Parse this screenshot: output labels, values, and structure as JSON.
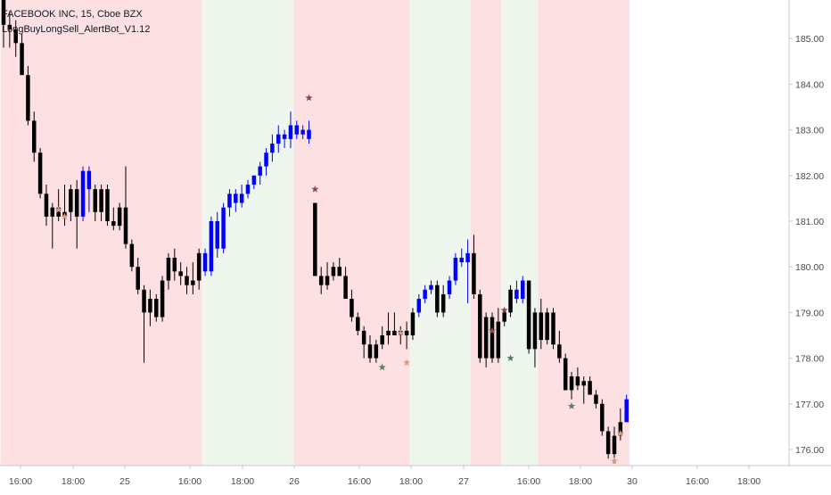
{
  "header": {
    "symbol_line": "FACEBOOK INC, 15, Cboe BZX",
    "indicator_line": "LongBuyLongSell_AlertBot_V1.12"
  },
  "colors": {
    "background": "#ffffff",
    "sell_zone": "#fde0e2",
    "buy_zone": "#eef6ee",
    "candle_black": "#000000",
    "candle_blue": "#0000ff",
    "star_buy": "#5f7a6a",
    "star_sell": "#8a4a4a",
    "star_light": "#d99a8a",
    "axis_text": "#4a4a4a",
    "axis_line": "#c9c9c9"
  },
  "chart_data": {
    "type": "candlestick",
    "title": "FACEBOOK INC, 15, Cboe BZX",
    "indicator": "LongBuyLongSell_AlertBot_V1.12",
    "ylim": [
      175.7,
      186.0
    ],
    "y_ticks": [
      176.0,
      177.0,
      178.0,
      179.0,
      180.0,
      181.0,
      182.0,
      183.0,
      184.0,
      185.0
    ],
    "x_tick_labels": [
      "16:00",
      "18:00",
      "25",
      "16:00",
      "18:00",
      "26",
      "16:00",
      "18:00",
      "27",
      "16:00",
      "18:00",
      "30",
      "16:00",
      "18:00"
    ],
    "zones": [
      {
        "type": "sell",
        "from_bar": -0.5,
        "to_bar": 32.5
      },
      {
        "type": "buy",
        "from_bar": 32.5,
        "to_bar": 47.5
      },
      {
        "type": "sell",
        "from_bar": 47.5,
        "to_bar": 66.5
      },
      {
        "type": "buy",
        "from_bar": 66.5,
        "to_bar": 76.5
      },
      {
        "type": "sell",
        "from_bar": 76.5,
        "to_bar": 81.5
      },
      {
        "type": "buy",
        "from_bar": 81.5,
        "to_bar": 87.5
      },
      {
        "type": "sell",
        "from_bar": 87.5,
        "to_bar": 102.5
      }
    ],
    "candles": [
      [
        185.9,
        186.0,
        184.8,
        185.3,
        "k"
      ],
      [
        185.3,
        185.6,
        184.8,
        185.2,
        "k"
      ],
      [
        185.2,
        185.4,
        184.6,
        184.9,
        "k"
      ],
      [
        184.9,
        185.1,
        184.3,
        184.2,
        "k"
      ],
      [
        184.2,
        184.4,
        183.1,
        183.2,
        "k"
      ],
      [
        183.2,
        183.4,
        182.3,
        182.5,
        "k"
      ],
      [
        182.5,
        182.6,
        181.5,
        181.6,
        "k"
      ],
      [
        181.6,
        181.8,
        180.9,
        181.1,
        "k"
      ],
      [
        181.1,
        181.4,
        180.4,
        181.3,
        "k"
      ],
      [
        181.3,
        181.7,
        181.0,
        181.1,
        "k"
      ],
      [
        181.1,
        181.8,
        180.9,
        181.2,
        "k"
      ],
      [
        181.2,
        181.8,
        181.0,
        181.7,
        "k"
      ],
      [
        181.7,
        181.9,
        180.4,
        181.1,
        "k"
      ],
      [
        181.1,
        182.2,
        181.0,
        182.1,
        "b"
      ],
      [
        182.1,
        182.2,
        181.2,
        181.7,
        "b"
      ],
      [
        181.7,
        181.8,
        181.0,
        181.2,
        "k"
      ],
      [
        181.2,
        181.8,
        181.0,
        181.7,
        "k"
      ],
      [
        181.7,
        181.8,
        180.9,
        181.0,
        "k"
      ],
      [
        181.0,
        181.3,
        180.8,
        180.9,
        "k"
      ],
      [
        180.9,
        181.4,
        180.8,
        181.3,
        "k"
      ],
      [
        181.3,
        182.2,
        180.4,
        180.5,
        "k"
      ],
      [
        180.5,
        180.6,
        179.9,
        180.0,
        "k"
      ],
      [
        180.0,
        180.2,
        179.4,
        179.5,
        "k"
      ],
      [
        179.5,
        179.6,
        177.9,
        179.0,
        "k"
      ],
      [
        179.0,
        179.5,
        178.7,
        179.3,
        "k"
      ],
      [
        179.3,
        179.4,
        178.8,
        178.9,
        "k"
      ],
      [
        178.9,
        179.8,
        178.8,
        179.7,
        "k"
      ],
      [
        179.7,
        180.3,
        179.5,
        180.2,
        "k"
      ],
      [
        180.2,
        180.4,
        179.7,
        179.9,
        "k"
      ],
      [
        179.9,
        180.1,
        179.6,
        179.8,
        "k"
      ],
      [
        179.8,
        180.0,
        179.4,
        179.6,
        "k"
      ],
      [
        179.6,
        180.1,
        179.4,
        179.7,
        "k"
      ],
      [
        179.7,
        180.4,
        179.5,
        180.3,
        "k"
      ],
      [
        180.3,
        180.4,
        179.8,
        179.9,
        "b"
      ],
      [
        179.9,
        181.1,
        179.8,
        181.0,
        "b"
      ],
      [
        181.0,
        181.2,
        180.2,
        180.4,
        "b"
      ],
      [
        180.4,
        181.4,
        180.3,
        181.3,
        "b"
      ],
      [
        181.3,
        181.7,
        181.1,
        181.6,
        "b"
      ],
      [
        181.6,
        181.7,
        181.2,
        181.4,
        "b"
      ],
      [
        181.4,
        181.8,
        181.3,
        181.6,
        "b"
      ],
      [
        181.6,
        181.9,
        181.5,
        181.8,
        "b"
      ],
      [
        181.8,
        182.0,
        181.7,
        182.0,
        "b"
      ],
      [
        182.0,
        182.3,
        181.8,
        182.2,
        "b"
      ],
      [
        182.2,
        182.6,
        182.0,
        182.5,
        "b"
      ],
      [
        182.5,
        182.9,
        182.3,
        182.7,
        "b"
      ],
      [
        182.7,
        183.1,
        182.5,
        182.9,
        "b"
      ],
      [
        182.9,
        183.0,
        182.6,
        182.8,
        "b"
      ],
      [
        182.8,
        183.4,
        182.6,
        183.1,
        "b"
      ],
      [
        183.1,
        183.2,
        182.8,
        182.9,
        "b"
      ],
      [
        182.9,
        183.1,
        182.8,
        183.0,
        "b"
      ],
      [
        183.0,
        183.2,
        182.7,
        182.8,
        "b"
      ],
      [
        181.4,
        181.4,
        179.8,
        179.8,
        "k"
      ],
      [
        179.8,
        180.0,
        179.4,
        179.6,
        "k"
      ],
      [
        179.6,
        180.1,
        179.5,
        179.8,
        "k"
      ],
      [
        179.8,
        180.1,
        179.7,
        180.0,
        "k"
      ],
      [
        180.0,
        180.2,
        179.8,
        179.8,
        "k"
      ],
      [
        179.8,
        180.0,
        179.3,
        179.3,
        "k"
      ],
      [
        179.3,
        179.5,
        178.8,
        178.9,
        "k"
      ],
      [
        178.9,
        179.0,
        178.5,
        178.6,
        "k"
      ],
      [
        178.6,
        178.7,
        178.0,
        178.3,
        "k"
      ],
      [
        178.3,
        178.5,
        177.9,
        178.0,
        "k"
      ],
      [
        178.0,
        178.4,
        177.9,
        178.3,
        "k"
      ],
      [
        178.3,
        178.7,
        178.2,
        178.5,
        "k"
      ],
      [
        178.5,
        179.0,
        178.3,
        178.6,
        "k"
      ],
      [
        178.6,
        179.0,
        178.5,
        178.5,
        "k"
      ],
      [
        178.5,
        178.7,
        178.3,
        178.6,
        "k"
      ],
      [
        178.6,
        178.8,
        178.2,
        178.5,
        "k"
      ],
      [
        178.5,
        179.1,
        178.4,
        179.0,
        "k"
      ],
      [
        179.0,
        179.4,
        178.9,
        179.3,
        "b"
      ],
      [
        179.3,
        179.6,
        179.2,
        179.5,
        "b"
      ],
      [
        179.5,
        179.7,
        179.4,
        179.6,
        "b"
      ],
      [
        179.6,
        179.7,
        178.9,
        179.0,
        "k"
      ],
      [
        179.0,
        179.6,
        178.9,
        179.4,
        "k"
      ],
      [
        179.4,
        179.8,
        179.3,
        179.7,
        "b"
      ],
      [
        179.7,
        180.3,
        179.6,
        180.2,
        "b"
      ],
      [
        180.2,
        180.4,
        180.0,
        180.1,
        "b"
      ],
      [
        180.1,
        180.6,
        179.2,
        180.3,
        "b"
      ],
      [
        180.3,
        180.7,
        179.3,
        179.4,
        "k"
      ],
      [
        179.4,
        179.5,
        177.9,
        178.0,
        "k"
      ],
      [
        178.0,
        179.0,
        177.8,
        178.9,
        "k"
      ],
      [
        178.9,
        179.0,
        177.9,
        178.0,
        "k"
      ],
      [
        178.0,
        179.1,
        177.9,
        178.8,
        "k"
      ],
      [
        178.8,
        179.1,
        178.7,
        179.0,
        "k"
      ],
      [
        179.0,
        179.6,
        178.9,
        179.5,
        "k"
      ],
      [
        179.5,
        179.7,
        179.2,
        179.3,
        "b"
      ],
      [
        179.3,
        179.8,
        179.2,
        179.7,
        "b"
      ],
      [
        179.7,
        179.7,
        178.1,
        178.2,
        "k"
      ],
      [
        178.2,
        179.1,
        177.8,
        179.0,
        "k"
      ],
      [
        179.0,
        179.3,
        178.2,
        178.4,
        "k"
      ],
      [
        178.4,
        179.1,
        178.3,
        179.0,
        "k"
      ],
      [
        179.0,
        179.1,
        178.2,
        178.3,
        "k"
      ],
      [
        178.3,
        178.6,
        177.9,
        178.0,
        "k"
      ],
      [
        178.0,
        178.1,
        177.3,
        177.3,
        "k"
      ],
      [
        177.3,
        177.7,
        177.1,
        177.6,
        "k"
      ],
      [
        177.6,
        177.8,
        177.3,
        177.4,
        "k"
      ],
      [
        177.4,
        177.6,
        177.0,
        177.5,
        "k"
      ],
      [
        177.5,
        177.6,
        177.2,
        177.2,
        "k"
      ],
      [
        177.2,
        177.3,
        176.9,
        177.0,
        "k"
      ],
      [
        177.0,
        177.1,
        176.3,
        176.4,
        "k"
      ],
      [
        176.4,
        176.5,
        175.8,
        175.9,
        "k"
      ],
      [
        175.9,
        176.5,
        175.7,
        176.3,
        "k"
      ],
      [
        176.3,
        176.9,
        176.2,
        176.6,
        "k"
      ],
      [
        176.6,
        177.2,
        176.6,
        177.1,
        "b"
      ]
    ],
    "stars": [
      {
        "bar": 9,
        "price": 181.25,
        "kind": "light"
      },
      {
        "bar": 10,
        "price": 181.1,
        "kind": "light"
      },
      {
        "bar": 50,
        "price": 183.7,
        "kind": "sell"
      },
      {
        "bar": 51,
        "price": 181.7,
        "kind": "sell"
      },
      {
        "bar": 62,
        "price": 177.8,
        "kind": "buy"
      },
      {
        "bar": 65,
        "price": 178.55,
        "kind": "light"
      },
      {
        "bar": 66,
        "price": 177.9,
        "kind": "light"
      },
      {
        "bar": 80,
        "price": 178.6,
        "kind": "sell"
      },
      {
        "bar": 82,
        "price": 179.05,
        "kind": "sell"
      },
      {
        "bar": 83,
        "price": 178.0,
        "kind": "buy"
      },
      {
        "bar": 93,
        "price": 176.95,
        "kind": "buy"
      },
      {
        "bar": 100,
        "price": 175.75,
        "kind": "light"
      },
      {
        "bar": 101,
        "price": 176.35,
        "kind": "light"
      }
    ]
  }
}
